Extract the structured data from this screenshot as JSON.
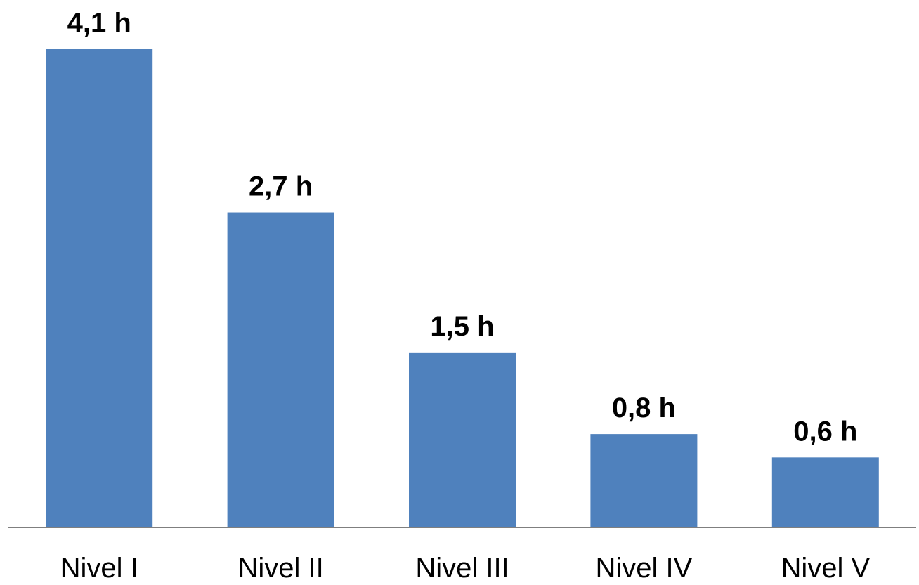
{
  "chart_data": {
    "type": "bar",
    "categories": [
      "Nivel I",
      "Nivel II",
      "Nivel III",
      "Nivel IV",
      "Nivel V"
    ],
    "values": [
      4.1,
      2.7,
      1.5,
      0.8,
      0.6
    ],
    "data_labels": [
      "4,1 h",
      "2,7 h",
      "1,5 h",
      "0,8 h",
      "0,6 h"
    ],
    "ylim": [
      0,
      4.1
    ],
    "grid": false,
    "legend": "none",
    "bar_color": "#4F81BD",
    "axis_color": "#7F7F7F"
  }
}
